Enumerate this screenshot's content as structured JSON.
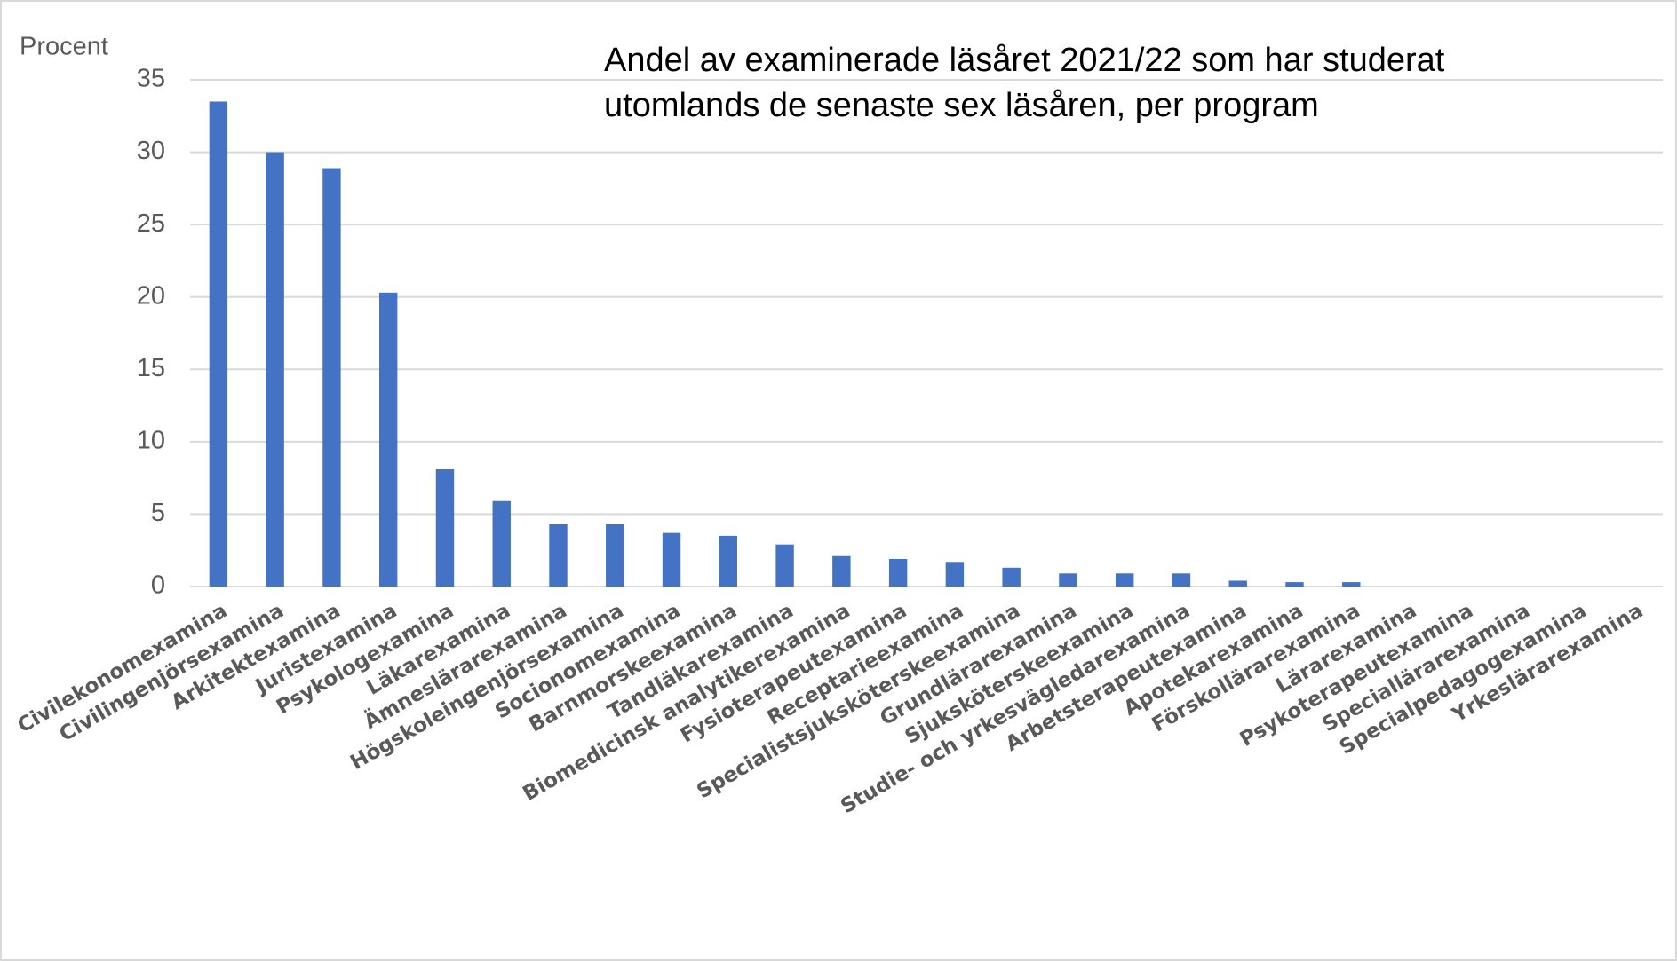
{
  "chart_data": {
    "type": "bar",
    "title_lines": [
      "Andel av examinerade läsåret 2021/22 som har studerat",
      "utomlands de senaste sex läsåren, per program"
    ],
    "y_label": "Procent",
    "categories": [
      "Civilekonomexamina",
      "Civilingenjörsexamina",
      "Arkitektexamina",
      "Juristexamina",
      "Psykologexamina",
      "Läkarexamina",
      "Ämneslärarexamina",
      "Högskoleingenjörsexamina",
      "Socionomexamina",
      "Barnmorskeexamina",
      "Tandläkarexamina",
      "Biomedicinsk analytikerexamina",
      "Fysioterapeutexamina",
      "Receptarieexamina",
      "Specialistsjuksköterskeexamina",
      "Grundlärarexamina",
      "Sjuksköterskeexamina",
      "Studie- och yrkesvägledarexamina",
      "Arbetsterapeutexamina",
      "Apotekarexamina",
      "Förskollärarexamina",
      "Lärarexamina",
      "Psykoterapeutexamina",
      "Speciallärarexamina",
      "Specialpedagogexamina",
      "Yrkeslärarexamina"
    ],
    "values": [
      33.5,
      30.0,
      28.9,
      20.3,
      8.1,
      5.9,
      4.3,
      4.3,
      3.7,
      3.5,
      2.9,
      2.1,
      1.9,
      1.7,
      1.3,
      0.9,
      0.9,
      0.9,
      0.4,
      0.3,
      0.3,
      0,
      0,
      0,
      0,
      0
    ],
    "color": "#4472c4",
    "ylim": [
      0,
      35
    ],
    "yticks": [
      0,
      5,
      10,
      15,
      20,
      25,
      30,
      35
    ],
    "grid": true
  }
}
